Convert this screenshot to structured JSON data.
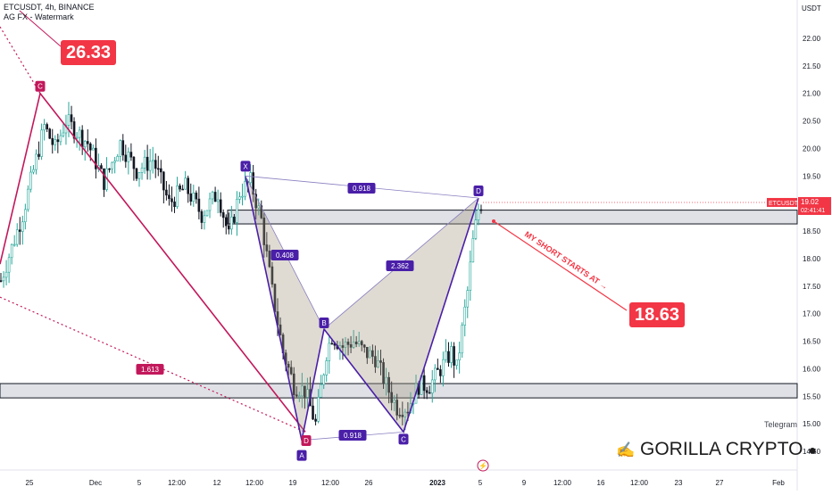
{
  "header": {
    "title": "ETCUSDT, 4h, BINANCE",
    "subtitle": "AG FX - Watermark"
  },
  "price_axis": {
    "unit": "USDT",
    "ticks": [
      "22.00",
      "21.50",
      "21.00",
      "20.50",
      "20.00",
      "19.50",
      "19.00",
      "18.50",
      "18.00",
      "17.50",
      "17.00",
      "16.50",
      "16.00",
      "15.50",
      "15.00",
      "14.50"
    ]
  },
  "time_axis": {
    "ticks": [
      "25",
      "Dec",
      "5",
      "12:00",
      "12",
      "12:00",
      "19",
      "12:00",
      "26",
      "2023",
      "5",
      "9",
      "12:00",
      "16",
      "12:00",
      "23",
      "27",
      "Feb"
    ]
  },
  "current_price": {
    "symbol": "ETCUSDT",
    "value": "19.02",
    "countdown": "02:41:41"
  },
  "labels": {
    "target_high": "26.33",
    "target_low": "18.63",
    "short_note": "MY SHORT STARTS AT",
    "telegram": "Telegram",
    "brand": "GORILLA CRYPTO"
  },
  "pattern": {
    "points": [
      "X",
      "A",
      "B",
      "C",
      "D"
    ],
    "ratios": {
      "xd": "0.918",
      "xb": "0.408",
      "bd": "2.362",
      "ac": "0.918"
    },
    "red_points": [
      "C",
      "D"
    ],
    "red_ratio": "1.613"
  },
  "chart_data": {
    "type": "candlestick",
    "title": "ETCUSDT, 4h, BINANCE",
    "ylabel": "USDT",
    "ylim": [
      14.25,
      22.5
    ],
    "zones": [
      {
        "name": "resistance",
        "from": 18.63,
        "to": 18.88
      },
      {
        "name": "support",
        "from": 15.47,
        "to": 15.73
      }
    ],
    "path_profile": [
      [
        0,
        17.6
      ],
      [
        4,
        18.8
      ],
      [
        8,
        20.4
      ],
      [
        10,
        20.0
      ],
      [
        12,
        20.5
      ],
      [
        16,
        20.1
      ],
      [
        19,
        19.4
      ],
      [
        22,
        20.1
      ],
      [
        25,
        19.6
      ],
      [
        28,
        19.8
      ],
      [
        31,
        19.0
      ],
      [
        34,
        19.3
      ],
      [
        37,
        18.8
      ],
      [
        40,
        19.2
      ],
      [
        42,
        18.4
      ],
      [
        44,
        19.2
      ],
      [
        46,
        19.4
      ],
      [
        48,
        18.7
      ],
      [
        50,
        17.4
      ],
      [
        52,
        16.3
      ],
      [
        54,
        15.7
      ],
      [
        56,
        15.6
      ],
      [
        58,
        15.0
      ],
      [
        60,
        16.3
      ],
      [
        61,
        16.6
      ],
      [
        63,
        16.4
      ],
      [
        65,
        16.5
      ],
      [
        67,
        16.3
      ],
      [
        69,
        16.2
      ],
      [
        71,
        15.7
      ],
      [
        73,
        15.3
      ],
      [
        75,
        15.3
      ],
      [
        77,
        15.7
      ],
      [
        79,
        15.7
      ],
      [
        81,
        16.0
      ],
      [
        83,
        16.3
      ],
      [
        84,
        16.0
      ],
      [
        86,
        17.4
      ],
      [
        87,
        18.3
      ],
      [
        88,
        18.9
      ],
      [
        89,
        19.1
      ]
    ]
  }
}
